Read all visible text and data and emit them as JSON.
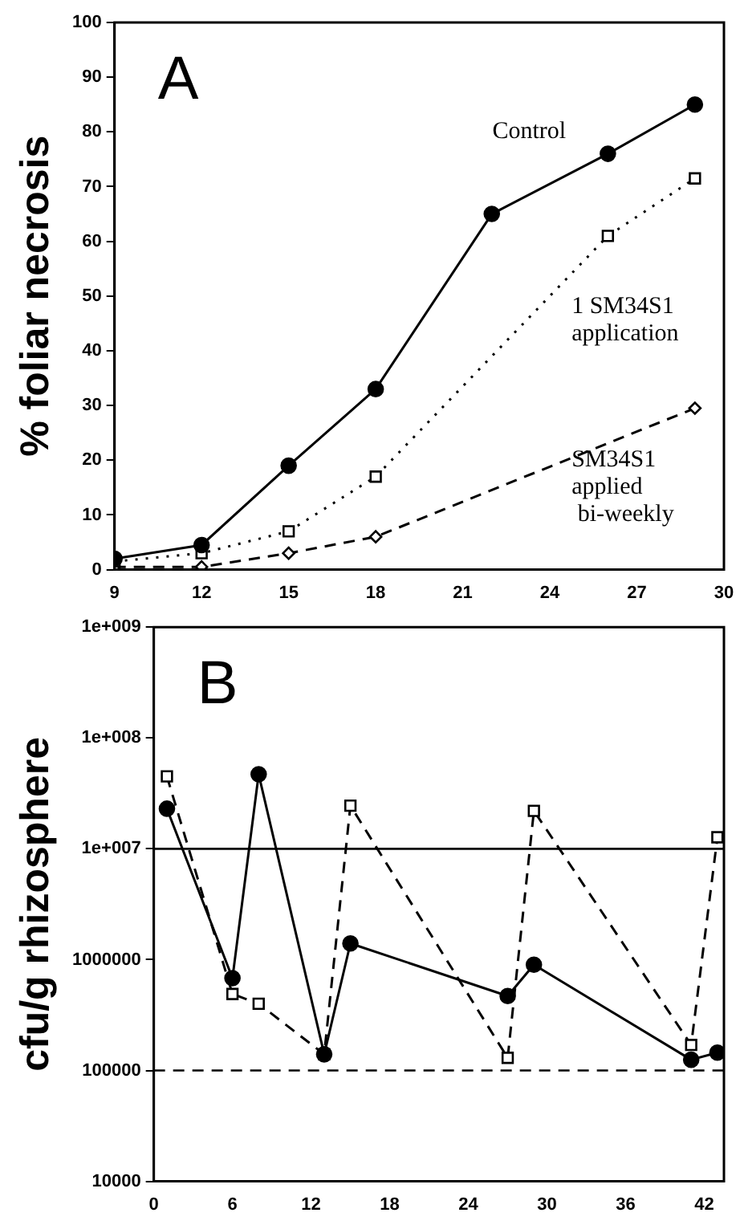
{
  "chart_data": [
    {
      "type": "line",
      "title": "A",
      "ylabel": "% foliar necrosis",
      "xlim": [
        9,
        30
      ],
      "xticks": [
        9,
        12,
        15,
        18,
        21,
        24,
        27,
        30
      ],
      "ylim": [
        0,
        100
      ],
      "yticks": [
        0,
        10,
        20,
        30,
        40,
        50,
        60,
        70,
        80,
        90,
        100
      ],
      "grid": false,
      "legend": false,
      "series": [
        {
          "color": "#000000",
          "marker": "circle",
          "line_style": "solid",
          "x": [
            9,
            12,
            15,
            18,
            22,
            26,
            29
          ],
          "values": [
            2,
            4.5,
            19,
            33,
            65,
            76,
            85
          ]
        },
        {
          "color": "#000000",
          "marker": "square",
          "line_style": "dotted",
          "x": [
            9,
            12,
            15,
            18,
            26,
            29
          ],
          "values": [
            1.5,
            3,
            7,
            17,
            61,
            71.5
          ]
        },
        {
          "color": "#000000",
          "marker": "diamond",
          "line_style": "dashed",
          "x": [
            9,
            12,
            15,
            18,
            29
          ],
          "values": [
            0.5,
            0.5,
            3,
            6,
            29.5
          ]
        }
      ],
      "annotations": [
        "Control",
        "1 SM34S1\napplication",
        "SM34S1\napplied\n bi-weekly"
      ]
    },
    {
      "type": "line",
      "title": "B",
      "ylabel": "cfu/g rhizosphere",
      "log": "y",
      "xlim": [
        0,
        43.5
      ],
      "xticks": [
        0,
        6,
        12,
        18,
        24,
        30,
        36,
        42
      ],
      "ylim": [
        10000,
        1000000000
      ],
      "yticks": [
        {
          "value": 10000,
          "label": "10000"
        },
        {
          "value": 100000,
          "label": "100000"
        },
        {
          "value": 1000000,
          "label": "1000000"
        },
        {
          "value": 10000000,
          "label": "1e+007"
        },
        {
          "value": 100000000,
          "label": "1e+008"
        },
        {
          "value": 1000000000,
          "label": "1e+009"
        }
      ],
      "grid": false,
      "legend": false,
      "ref_lines": [
        {
          "axis": "y",
          "value": 10000000,
          "line_style": "solid",
          "color": "#000000"
        },
        {
          "axis": "y",
          "value": 100000,
          "line_style": "dashed",
          "color": "#000000"
        }
      ],
      "series": [
        {
          "color": "#000000",
          "marker": "circle",
          "line_style": "solid",
          "x": [
            1,
            6,
            8,
            13,
            15,
            27,
            29,
            41,
            43
          ],
          "values": [
            23000000,
            680000,
            47000000,
            140000,
            1400000,
            470000,
            900000,
            125000,
            145000
          ]
        },
        {
          "color": "#000000",
          "marker": "square",
          "line_style": "dashed",
          "x": [
            1,
            6,
            8,
            13,
            15,
            27,
            29,
            41,
            43
          ],
          "values": [
            45000000,
            490000,
            400000,
            140000,
            24500000,
            130000,
            22000000,
            170000,
            12700000
          ]
        }
      ]
    }
  ]
}
